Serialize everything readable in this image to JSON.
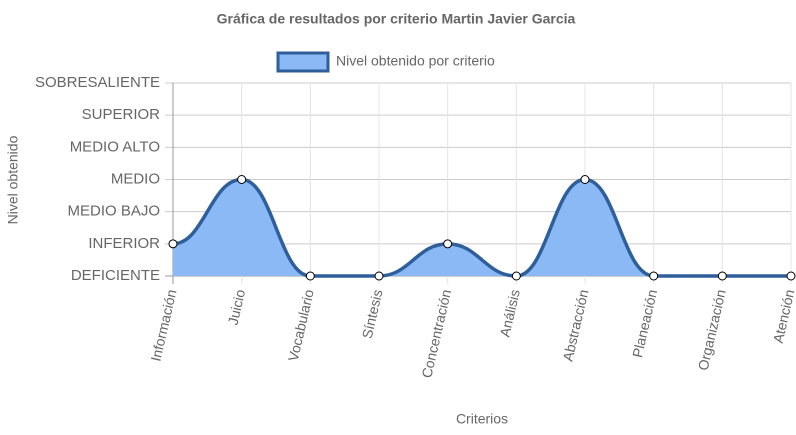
{
  "chart_data": {
    "type": "line",
    "title": "Gráfica de resultados por criterio Martin Javier Garcia",
    "x_label": "Criterios",
    "y_label": "Nivel obtenido",
    "categories": [
      "Información",
      "Juicio",
      "Vocabulario",
      "Síntesis",
      "Concentración",
      "Análisis",
      "Abstracción",
      "Planeación",
      "Organización",
      "Atención"
    ],
    "series": [
      {
        "name": "Nivel obtenido por criterio",
        "color": "#8ab9f6",
        "border_color": "#2f5f9a",
        "fill": true,
        "values": [
          1,
          3,
          0,
          0,
          1,
          0,
          3,
          0,
          0,
          0
        ]
      }
    ],
    "ylim": [
      0,
      6
    ],
    "yticks": [
      {
        "value": 0,
        "label": "DEFICIENTE"
      },
      {
        "value": 1,
        "label": "INFERIOR"
      },
      {
        "value": 2,
        "label": "MEDIO BAJO"
      },
      {
        "value": 3,
        "label": "MEDIO"
      },
      {
        "value": 4,
        "label": "MEDIO ALTO"
      },
      {
        "value": 5,
        "label": "SUPERIOR"
      },
      {
        "value": 6,
        "label": "SOBRESALIENTE"
      }
    ],
    "grid": true,
    "legend_position": "top"
  }
}
